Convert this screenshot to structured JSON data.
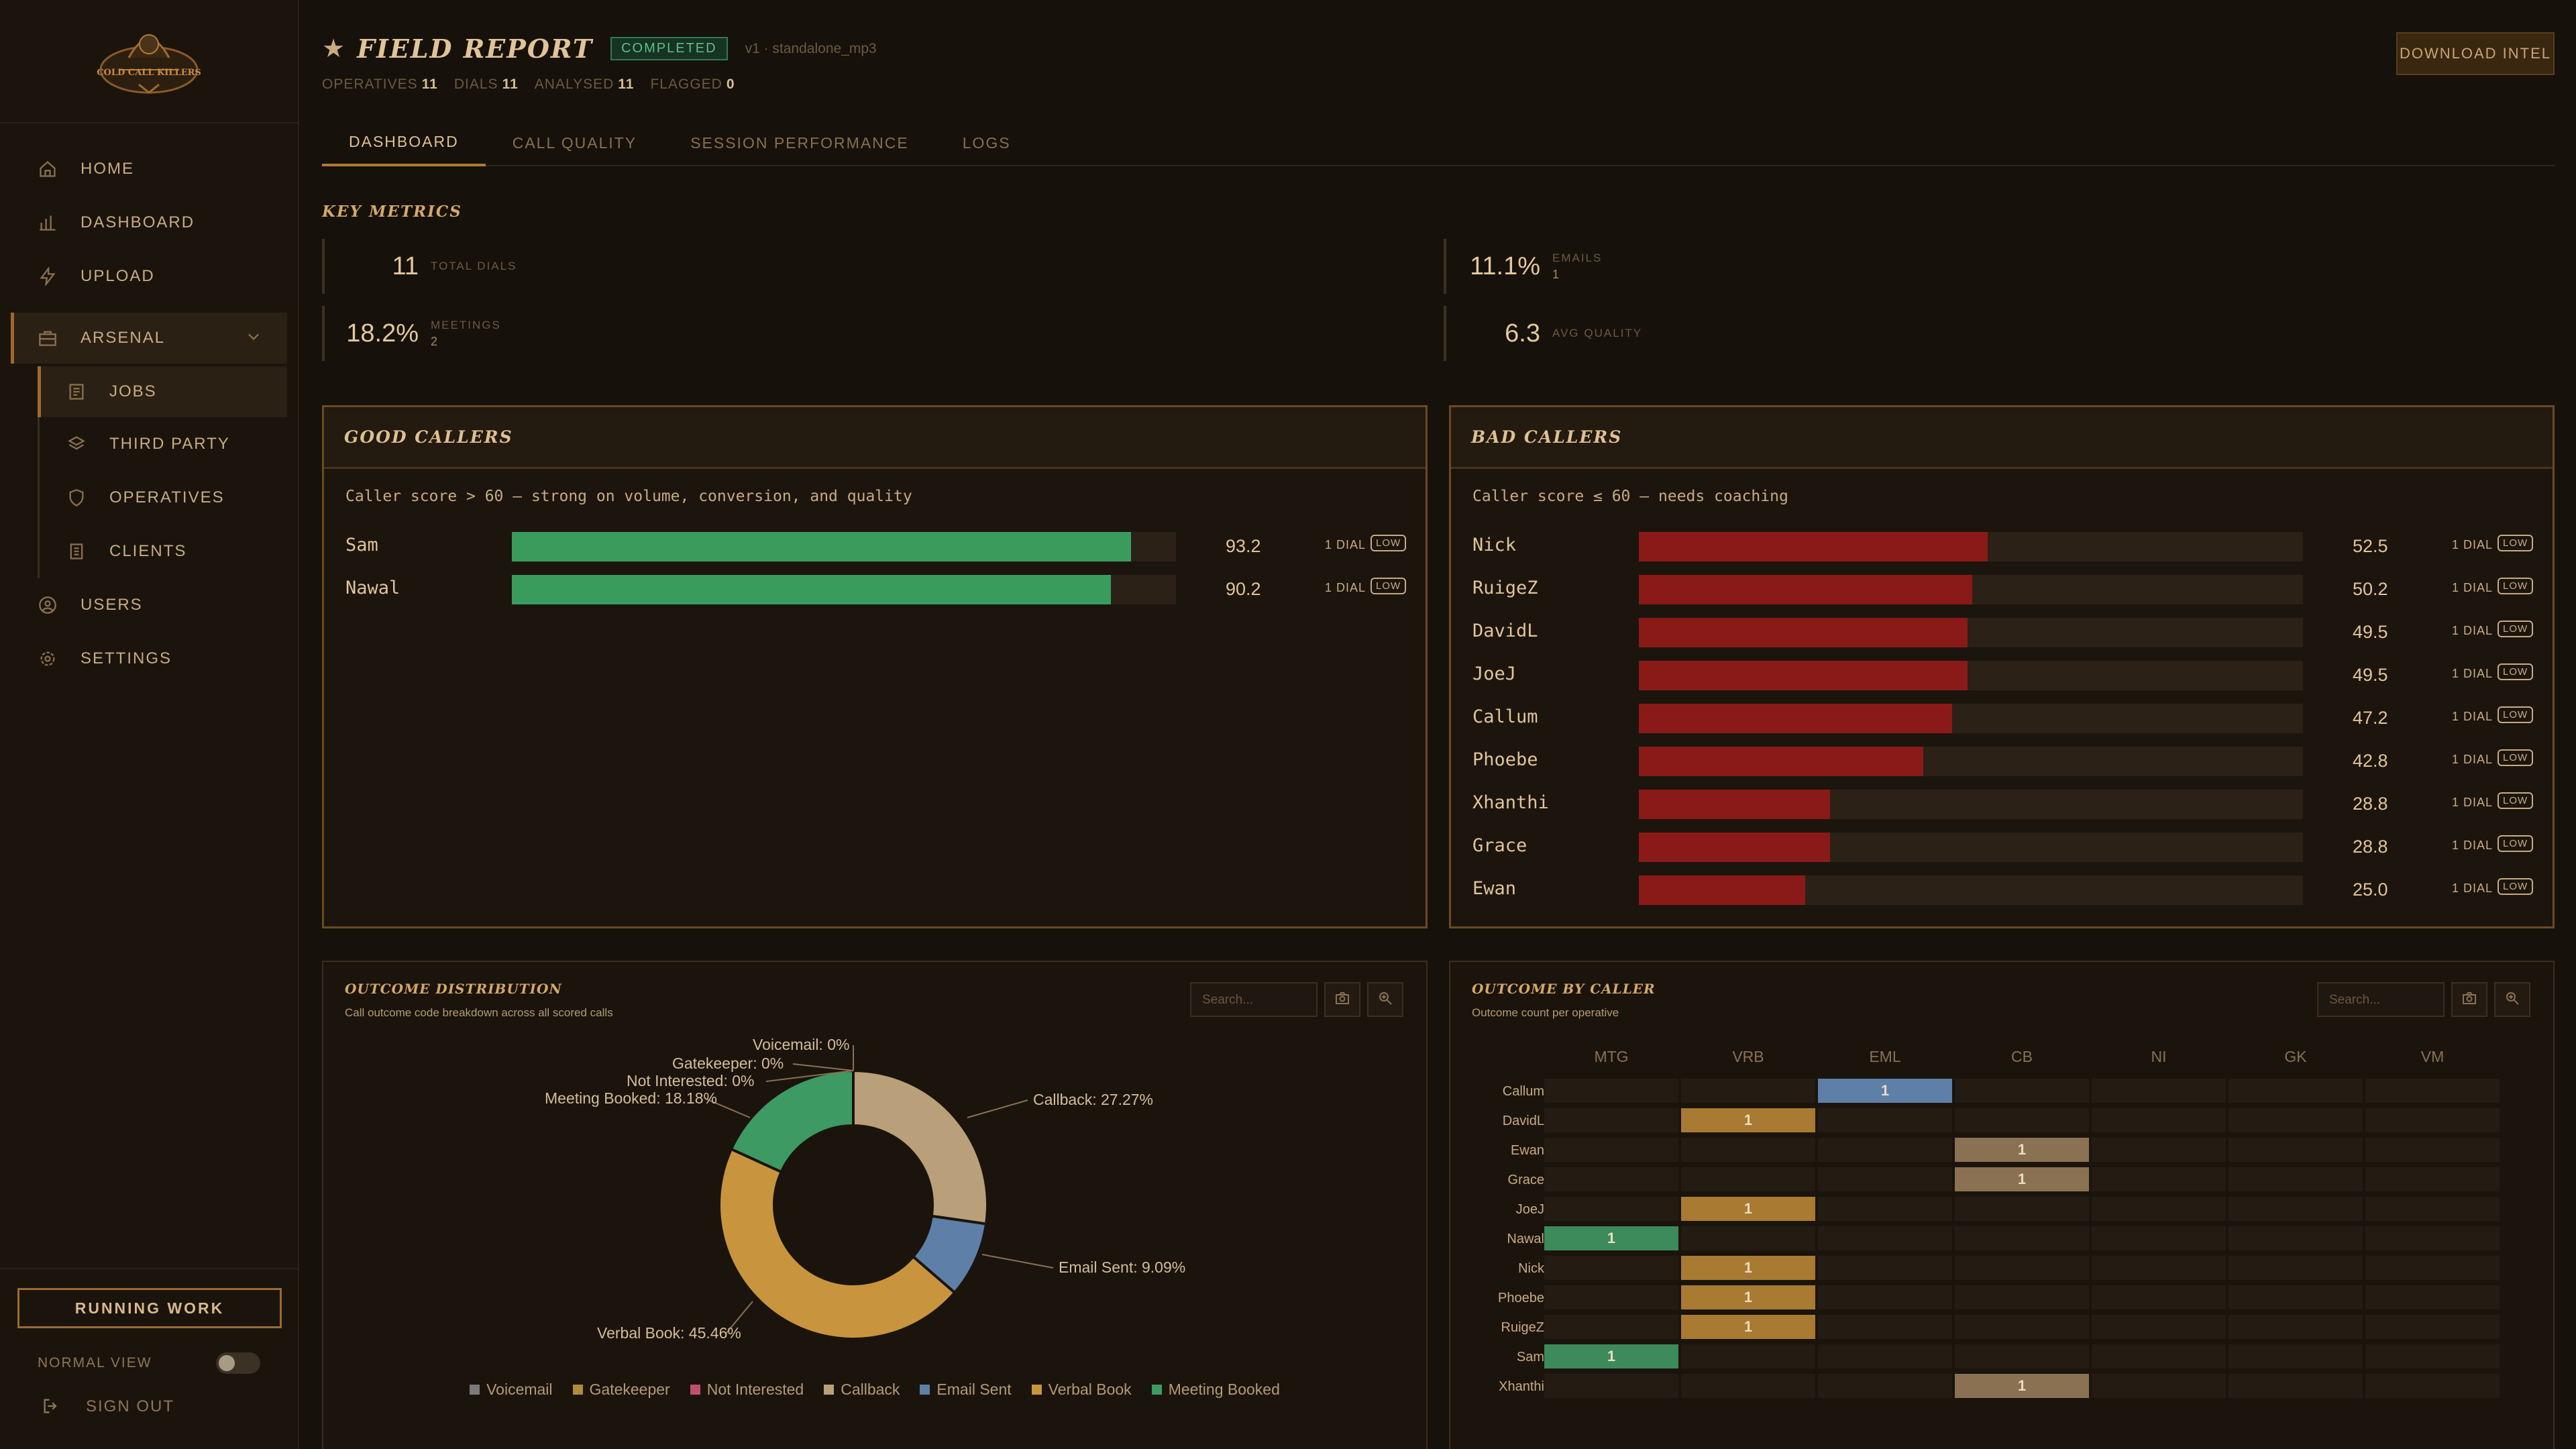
{
  "brand": {
    "logo_text": "COLD CALL KILLERS"
  },
  "sidebar": {
    "items": [
      {
        "label": "HOME",
        "icon": "home-icon"
      },
      {
        "label": "DASHBOARD",
        "icon": "bar-chart-icon"
      },
      {
        "label": "UPLOAD",
        "icon": "bolt-icon"
      }
    ],
    "group": {
      "label": "ARSENAL",
      "icon": "briefcase-icon"
    },
    "subitems": [
      {
        "label": "JOBS",
        "icon": "list-icon",
        "active": true
      },
      {
        "label": "THIRD PARTY",
        "icon": "stack-icon"
      },
      {
        "label": "OPERATIVES",
        "icon": "shield-icon"
      },
      {
        "label": "CLIENTS",
        "icon": "document-icon"
      }
    ],
    "items_after": [
      {
        "label": "USERS",
        "icon": "user-circle-icon"
      },
      {
        "label": "SETTINGS",
        "icon": "gear-icon"
      }
    ],
    "running_work": "RUNNING WORK",
    "normal_view": "NORMAL VIEW",
    "sign_out": "SIGN OUT"
  },
  "header": {
    "title": "FIELD REPORT",
    "status": "COMPLETED",
    "version": "v1 · standalone_mp3",
    "counts": [
      {
        "label": "OPERATIVES",
        "value": "11"
      },
      {
        "label": "DIALS",
        "value": "11"
      },
      {
        "label": "ANALYSED",
        "value": "11"
      },
      {
        "label": "FLAGGED",
        "value": "0"
      }
    ],
    "download": "DOWNLOAD INTEL"
  },
  "tabs": [
    "DASHBOARD",
    "CALL QUALITY",
    "SESSION PERFORMANCE",
    "LOGS"
  ],
  "key_metrics": {
    "title": "KEY METRICS",
    "total_dials": {
      "value": "11",
      "label": "TOTAL DIALS"
    },
    "meetings": {
      "value": "18.2%",
      "label": "MEETINGS",
      "sub": "2"
    },
    "emails": {
      "value": "11.1%",
      "label": "EMAILS",
      "sub": "1"
    },
    "avg_quality": {
      "value": "6.3",
      "label": "AVG QUALITY"
    }
  },
  "good_callers": {
    "title": "GOOD CALLERS",
    "desc": "Caller score > 60 — strong on volume, conversion, and quality",
    "rows": [
      {
        "name": "Sam",
        "score": "93.2",
        "fraction": 0.932,
        "dial": "1 DIAL",
        "tag": "LOW"
      },
      {
        "name": "Nawal",
        "score": "90.2",
        "fraction": 0.902,
        "dial": "1 DIAL",
        "tag": "LOW"
      }
    ]
  },
  "bad_callers": {
    "title": "BAD CALLERS",
    "desc": "Caller score ≤ 60 — needs coaching",
    "rows": [
      {
        "name": "Nick",
        "score": "52.5",
        "fraction": 0.525,
        "dial": "1 DIAL",
        "tag": "LOW"
      },
      {
        "name": "RuigeZ",
        "score": "50.2",
        "fraction": 0.502,
        "dial": "1 DIAL",
        "tag": "LOW"
      },
      {
        "name": "DavidL",
        "score": "49.5",
        "fraction": 0.495,
        "dial": "1 DIAL",
        "tag": "LOW"
      },
      {
        "name": "JoeJ",
        "score": "49.5",
        "fraction": 0.495,
        "dial": "1 DIAL",
        "tag": "LOW"
      },
      {
        "name": "Callum",
        "score": "47.2",
        "fraction": 0.472,
        "dial": "1 DIAL",
        "tag": "LOW"
      },
      {
        "name": "Phoebe",
        "score": "42.8",
        "fraction": 0.428,
        "dial": "1 DIAL",
        "tag": "LOW"
      },
      {
        "name": "Xhanthi",
        "score": "28.8",
        "fraction": 0.288,
        "dial": "1 DIAL",
        "tag": "LOW"
      },
      {
        "name": "Grace",
        "score": "28.8",
        "fraction": 0.288,
        "dial": "1 DIAL",
        "tag": "LOW"
      },
      {
        "name": "Ewan",
        "score": "25.0",
        "fraction": 0.25,
        "dial": "1 DIAL",
        "tag": "LOW"
      }
    ]
  },
  "outcome_distribution": {
    "title": "OUTCOME DISTRIBUTION",
    "subtitle": "Call outcome code breakdown across all scored calls",
    "search_placeholder": "Search..."
  },
  "outcome_by_caller": {
    "title": "OUTCOME BY CALLER",
    "subtitle": "Outcome count per operative",
    "search_placeholder": "Search..."
  },
  "chart_data": [
    {
      "type": "pie",
      "title": "OUTCOME DISTRIBUTION",
      "slices": [
        {
          "name": "Voicemail",
          "value": 0,
          "label": "Voicemail: 0%",
          "color": "#7a7a7a"
        },
        {
          "name": "Gatekeeper",
          "value": 0,
          "label": "Gatekeeper: 0%",
          "color": "#b08a3e"
        },
        {
          "name": "Not Interested",
          "value": 0,
          "label": "Not Interested: 0%",
          "color": "#c0506a"
        },
        {
          "name": "Callback",
          "value": 27.27,
          "label": "Callback: 27.27%",
          "color": "#b9a07a"
        },
        {
          "name": "Email Sent",
          "value": 9.09,
          "label": "Email Sent: 9.09%",
          "color": "#5e7fa8"
        },
        {
          "name": "Verbal Book",
          "value": 45.46,
          "label": "Verbal Book: 45.46%",
          "color": "#c8953e"
        },
        {
          "name": "Meeting Booked",
          "value": 18.18,
          "label": "Meeting Booked: 18.18%",
          "color": "#3d9a62"
        }
      ]
    },
    {
      "type": "heatmap",
      "title": "OUTCOME BY CALLER",
      "columns": [
        "MTG",
        "VRB",
        "EML",
        "CB",
        "NI",
        "GK",
        "VM"
      ],
      "rows": [
        "Callum",
        "DavidL",
        "Ewan",
        "Grace",
        "JoeJ",
        "Nawal",
        "Nick",
        "Phoebe",
        "RuigeZ",
        "Sam",
        "Xhanthi"
      ],
      "values": [
        [
          0,
          0,
          1,
          0,
          0,
          0,
          0
        ],
        [
          0,
          1,
          0,
          0,
          0,
          0,
          0
        ],
        [
          0,
          0,
          0,
          1,
          0,
          0,
          0
        ],
        [
          0,
          0,
          0,
          1,
          0,
          0,
          0
        ],
        [
          0,
          1,
          0,
          0,
          0,
          0,
          0
        ],
        [
          1,
          0,
          0,
          0,
          0,
          0,
          0
        ],
        [
          0,
          1,
          0,
          0,
          0,
          0,
          0
        ],
        [
          0,
          1,
          0,
          0,
          0,
          0,
          0
        ],
        [
          0,
          1,
          0,
          0,
          0,
          0,
          0
        ],
        [
          1,
          0,
          0,
          0,
          0,
          0,
          0
        ],
        [
          0,
          0,
          0,
          1,
          0,
          0,
          0
        ]
      ],
      "column_colors": [
        "#3d8a5a",
        "#a87a32",
        "#5e7fa8",
        "#8a7152",
        "#5a4a36",
        "#5a4a36",
        "#5a4a36"
      ]
    }
  ]
}
